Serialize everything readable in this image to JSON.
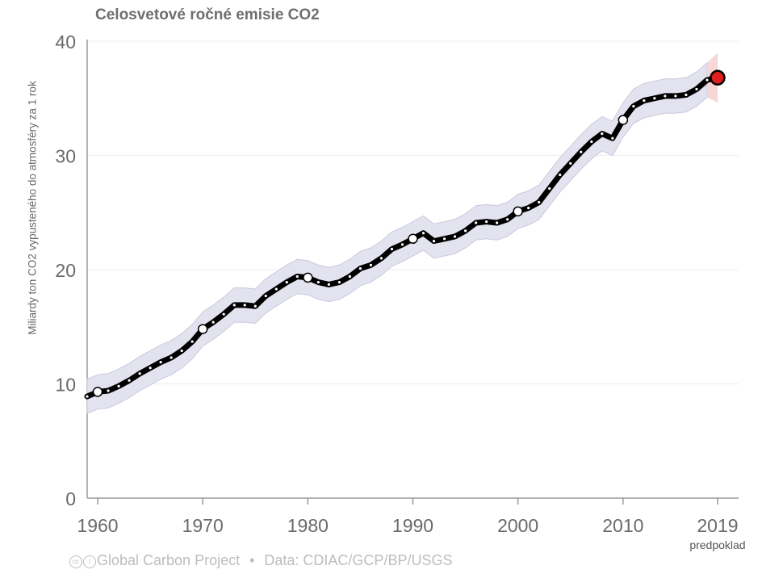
{
  "chart_data": {
    "type": "line",
    "title": "Celosvetové ročné emisie CO2",
    "xlabel": "",
    "ylabel": "Miliardy ton CO2 vypusteného do atmosféry za 1 rok",
    "xlim": [
      1959,
      2021
    ],
    "ylim": [
      0,
      40
    ],
    "x_ticks": [
      "1960",
      "1970",
      "1980",
      "1990",
      "2000",
      "2010",
      "2019"
    ],
    "y_ticks": [
      "0",
      "10",
      "20",
      "30",
      "40"
    ],
    "forecast_label": "predpoklad",
    "grid": true,
    "series": [
      {
        "x": [
          1959,
          1960,
          1961,
          1962,
          1963,
          1964,
          1965,
          1966,
          1967,
          1968,
          1969,
          1970,
          1971,
          1972,
          1973,
          1974,
          1975,
          1976,
          1977,
          1978,
          1979,
          1980,
          1981,
          1982,
          1983,
          1984,
          1985,
          1986,
          1987,
          1988,
          1989,
          1990,
          1991,
          1992,
          1993,
          1994,
          1995,
          1996,
          1997,
          1998,
          1999,
          2000,
          2001,
          2002,
          2003,
          2004,
          2005,
          2006,
          2007,
          2008,
          2009,
          2010,
          2011,
          2012,
          2013,
          2014,
          2015,
          2016,
          2017,
          2018,
          2019
        ],
        "y": [
          8.9,
          9.3,
          9.4,
          9.8,
          10.3,
          10.9,
          11.4,
          11.9,
          12.3,
          12.9,
          13.7,
          14.8,
          15.4,
          16.1,
          16.9,
          16.9,
          16.8,
          17.7,
          18.3,
          18.9,
          19.4,
          19.3,
          18.9,
          18.7,
          18.9,
          19.4,
          20.1,
          20.4,
          21.0,
          21.8,
          22.2,
          22.7,
          23.2,
          22.5,
          22.7,
          22.9,
          23.4,
          24.1,
          24.2,
          24.1,
          24.4,
          25.1,
          25.4,
          25.9,
          27.1,
          28.3,
          29.3,
          30.3,
          31.2,
          31.9,
          31.5,
          33.1,
          34.3,
          34.8,
          35.0,
          35.2,
          35.2,
          35.3,
          35.8,
          36.6,
          36.8
        ],
        "uncertainty": 1.5
      }
    ],
    "colors": {
      "line": "#000000",
      "uncertainty_band": "#e3e3f0",
      "uncertainty_stroke": "#c8c8dc",
      "forecast_band": "#f6d6d6",
      "forecast_point": "#e11d1d"
    },
    "footer": {
      "project": "Global Carbon Project",
      "separator": "•",
      "data_source": "Data: CDIAC/GCP/BP/USGS"
    }
  }
}
